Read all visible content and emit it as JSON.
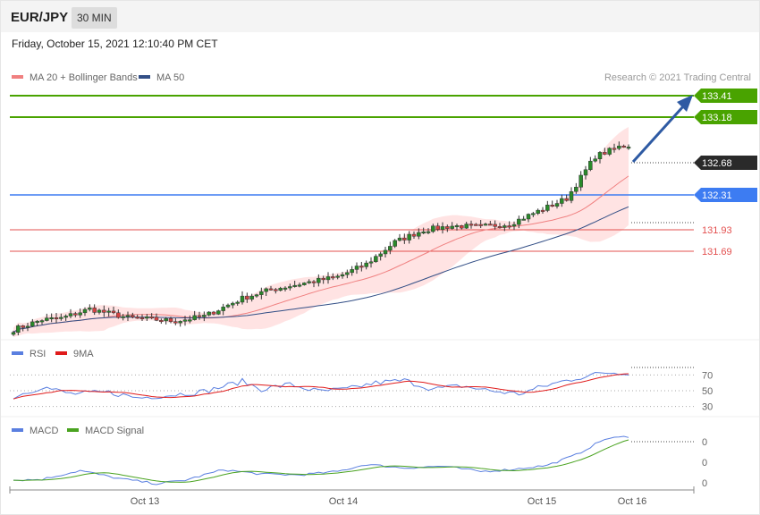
{
  "header": {
    "symbol": "EUR/JPY",
    "timeframe": "30 MIN",
    "datetime": "Friday, October 15, 2021 12:10:40 PM CET"
  },
  "colors": {
    "resistance": "#49a300",
    "support_blue": "#3d7cf2",
    "support_red": "#e3504f",
    "current": "#2a2a2a",
    "bollinger": "#ffd9d9",
    "ma20": "#f08080",
    "ma50": "#334f86",
    "arrow": "#2e5aa3",
    "up_candle": "#2a8a2a",
    "down_candle": "#d44242",
    "rsi": "#5a7fe0",
    "rsi_ma": "#e01b1b",
    "macd": "#5a7fe0",
    "macd_signal": "#4aa320"
  },
  "legend": {
    "main": [
      {
        "label": "MA 20 + Bollinger Bands",
        "color": "#f08080"
      },
      {
        "label": "MA 50",
        "color": "#334f86"
      }
    ],
    "rsi": [
      {
        "label": "RSI",
        "color": "#5a7fe0"
      },
      {
        "label": "9MA",
        "color": "#e01b1b"
      }
    ],
    "macd": [
      {
        "label": "MACD",
        "color": "#5a7fe0"
      },
      {
        "label": "MACD Signal",
        "color": "#4aa320"
      }
    ]
  },
  "credit": "Research © 2021 Trading Central",
  "chart_data": {
    "type": "candlestick",
    "price_levels": [
      {
        "value": "133.41",
        "kind": "resistance",
        "style": "badge-green"
      },
      {
        "value": "133.18",
        "kind": "resistance",
        "style": "badge-green"
      },
      {
        "value": "132.68",
        "kind": "last",
        "style": "badge-dark"
      },
      {
        "value": "132.31",
        "kind": "pivot",
        "style": "badge-blue"
      },
      {
        "value": "131.93",
        "kind": "support",
        "style": "text-red"
      },
      {
        "value": "131.69",
        "kind": "support",
        "style": "text-red"
      }
    ],
    "y_range": [
      129.84,
      133.58
    ],
    "bars": 130,
    "price_anchors": [
      [
        0,
        129.95
      ],
      [
        6,
        130.1
      ],
      [
        10,
        130.12
      ],
      [
        16,
        130.26
      ],
      [
        24,
        130.13
      ],
      [
        34,
        130.08
      ],
      [
        40,
        130.15
      ],
      [
        48,
        130.42
      ],
      [
        54,
        130.55
      ],
      [
        62,
        130.66
      ],
      [
        68,
        130.74
      ],
      [
        74,
        130.93
      ],
      [
        80,
        131.26
      ],
      [
        86,
        131.44
      ],
      [
        92,
        131.5
      ],
      [
        98,
        131.49
      ],
      [
        104,
        131.53
      ],
      [
        110,
        131.72
      ],
      [
        116,
        131.91
      ],
      [
        122,
        132.54
      ],
      [
        127,
        132.68
      ],
      [
        129,
        132.68
      ]
    ],
    "x_ticks": [
      "Oct 13",
      "Oct 14",
      "Oct 15",
      "Oct 16"
    ],
    "rsi": {
      "ticks": [
        "70",
        "50",
        "30"
      ],
      "anchors": [
        [
          0,
          42
        ],
        [
          6,
          55
        ],
        [
          12,
          46
        ],
        [
          20,
          48
        ],
        [
          26,
          41
        ],
        [
          32,
          44
        ],
        [
          40,
          49
        ],
        [
          48,
          62
        ],
        [
          52,
          52
        ],
        [
          58,
          58
        ],
        [
          64,
          49
        ],
        [
          70,
          52
        ],
        [
          76,
          60
        ],
        [
          82,
          63
        ],
        [
          88,
          52
        ],
        [
          94,
          56
        ],
        [
          100,
          50
        ],
        [
          106,
          46
        ],
        [
          112,
          57
        ],
        [
          118,
          66
        ],
        [
          124,
          73
        ],
        [
          129,
          73
        ]
      ]
    },
    "macd": {
      "ticks": [
        "0",
        "0",
        "0"
      ],
      "anchors": [
        [
          0,
          -0.02
        ],
        [
          6,
          -0.01
        ],
        [
          14,
          0.09
        ],
        [
          22,
          0.0
        ],
        [
          30,
          -0.06
        ],
        [
          36,
          -0.02
        ],
        [
          44,
          0.1
        ],
        [
          52,
          0.05
        ],
        [
          60,
          0.04
        ],
        [
          68,
          0.08
        ],
        [
          74,
          0.16
        ],
        [
          82,
          0.12
        ],
        [
          90,
          0.14
        ],
        [
          98,
          0.08
        ],
        [
          104,
          0.1
        ],
        [
          112,
          0.15
        ],
        [
          118,
          0.27
        ],
        [
          124,
          0.45
        ],
        [
          129,
          0.48
        ]
      ]
    }
  }
}
